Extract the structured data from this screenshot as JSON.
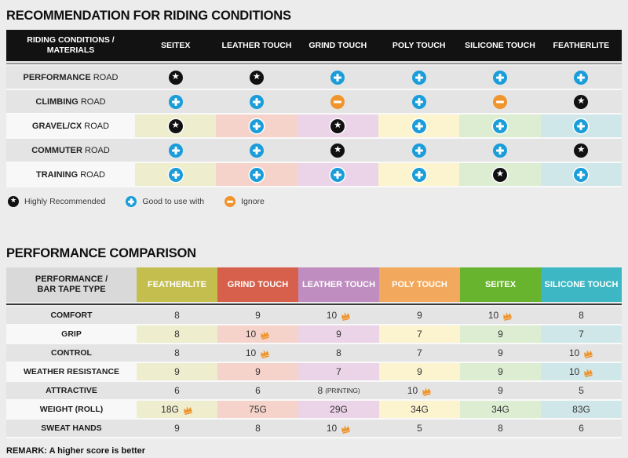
{
  "colors": {
    "page_bg": "#ececec",
    "header_bar": "#121212",
    "row_gray": "#e4e4e4",
    "row_label_light": "#f8f8f8",
    "plus": "#1a9dd9",
    "minus": "#f0952d",
    "star": "#111111",
    "crown": "#f0942c",
    "divider1": "#999999",
    "divider2": "#3a3a3a",
    "label_header_bg": "#d9d9d9"
  },
  "riding_table": {
    "title": "RECOMMENDATION FOR RIDING CONDITIONS",
    "header_lines": [
      "RIDING CONDITIONS /",
      "MATERIALS"
    ],
    "columns": [
      "SEITEX",
      "LEATHER TOUCH",
      "GRIND TOUCH",
      "POLY TOUCH",
      "SILICONE TOUCH",
      "FEATHERLITE"
    ],
    "column_tints": [
      "#eeedcd",
      "#f6d3ca",
      "#ebd3e8",
      "#fcf3cf",
      "#dcedd2",
      "#cfe7e9"
    ],
    "rows": [
      {
        "condition": "PERFORMANCE",
        "suffix": "ROAD",
        "tinted": false,
        "icons": [
          "star",
          "star",
          "plus",
          "plus",
          "plus",
          "plus"
        ]
      },
      {
        "condition": "CLIMBING",
        "suffix": "ROAD",
        "tinted": false,
        "icons": [
          "plus",
          "plus",
          "minus",
          "plus",
          "minus",
          "star"
        ]
      },
      {
        "condition": "GRAVEL/CX",
        "suffix": "ROAD",
        "tinted": true,
        "icons": [
          "star",
          "plus",
          "star",
          "plus",
          "plus",
          "plus"
        ]
      },
      {
        "condition": "COMMUTER",
        "suffix": "ROAD",
        "tinted": false,
        "icons": [
          "plus",
          "plus",
          "star",
          "plus",
          "plus",
          "star"
        ]
      },
      {
        "condition": "TRAINING",
        "suffix": "ROAD",
        "tinted": true,
        "icons": [
          "plus",
          "plus",
          "plus",
          "plus",
          "star",
          "plus"
        ]
      }
    ],
    "legend": [
      {
        "icon": "star",
        "label": "Highly Recommended"
      },
      {
        "icon": "plus",
        "label": "Good to use with"
      },
      {
        "icon": "minus",
        "label": "Ignore"
      }
    ]
  },
  "performance_table": {
    "title": "PERFORMANCE COMPARISON",
    "header_lines": [
      "PERFORMANCE /",
      "BAR TAPE TYPE"
    ],
    "columns": [
      {
        "name": "FEATHERLITE",
        "color": "#c4be4e",
        "tint": "#eeedcd"
      },
      {
        "name": "GRIND TOUCH",
        "color": "#d6604b",
        "tint": "#f6d3ca"
      },
      {
        "name": "LEATHER TOUCH",
        "color": "#bf8dbf",
        "tint": "#ebd3e8"
      },
      {
        "name": "POLY TOUCH",
        "color": "#f3a95d",
        "tint": "#fcf3cf"
      },
      {
        "name": "SEITEX",
        "color": "#69b42f",
        "tint": "#dcedd2"
      },
      {
        "name": "SILICONE TOUCH",
        "color": "#3db7c3",
        "tint": "#cfe7e9"
      }
    ],
    "rows": [
      {
        "metric": "COMFORT",
        "tinted": false,
        "cells": [
          {
            "value": "8"
          },
          {
            "value": "9"
          },
          {
            "value": "10",
            "crown": true
          },
          {
            "value": "9"
          },
          {
            "value": "10",
            "crown": true
          },
          {
            "value": "8"
          }
        ]
      },
      {
        "metric": "GRIP",
        "tinted": true,
        "cells": [
          {
            "value": "8"
          },
          {
            "value": "10",
            "crown": true
          },
          {
            "value": "9"
          },
          {
            "value": "7"
          },
          {
            "value": "9"
          },
          {
            "value": "7"
          }
        ]
      },
      {
        "metric": "CONTROL",
        "tinted": false,
        "cells": [
          {
            "value": "8"
          },
          {
            "value": "10",
            "crown": true
          },
          {
            "value": "8"
          },
          {
            "value": "7"
          },
          {
            "value": "9"
          },
          {
            "value": "10",
            "crown": true
          }
        ]
      },
      {
        "metric": "WEATHER RESISTANCE",
        "tinted": true,
        "cells": [
          {
            "value": "9"
          },
          {
            "value": "9"
          },
          {
            "value": "7"
          },
          {
            "value": "9"
          },
          {
            "value": "9"
          },
          {
            "value": "10",
            "crown": true
          }
        ]
      },
      {
        "metric": "ATTRACTIVE",
        "tinted": false,
        "cells": [
          {
            "value": "6"
          },
          {
            "value": "6"
          },
          {
            "value": "8",
            "note": "(PRINTING)"
          },
          {
            "value": "10",
            "crown": true
          },
          {
            "value": "9"
          },
          {
            "value": "5"
          }
        ]
      },
      {
        "metric": "WEIGHT (ROLL)",
        "tinted": true,
        "cells": [
          {
            "value": "18G",
            "crown": true
          },
          {
            "value": "75G"
          },
          {
            "value": "29G"
          },
          {
            "value": "34G"
          },
          {
            "value": "34G"
          },
          {
            "value": "83G"
          }
        ]
      },
      {
        "metric": "SWEAT HANDS",
        "tinted": false,
        "cells": [
          {
            "value": "9"
          },
          {
            "value": "8"
          },
          {
            "value": "10",
            "crown": true
          },
          {
            "value": "5"
          },
          {
            "value": "8"
          },
          {
            "value": "6"
          }
        ]
      }
    ],
    "remark": "REMARK: A higher score is better"
  },
  "chart_data": [
    {
      "type": "table",
      "title": "RECOMMENDATION FOR RIDING CONDITIONS",
      "columns": [
        "RIDING CONDITIONS / MATERIALS",
        "SEITEX",
        "LEATHER TOUCH",
        "GRIND TOUCH",
        "POLY TOUCH",
        "SILICONE TOUCH",
        "FEATHERLITE"
      ],
      "legend": {
        "star": "Highly Recommended",
        "plus": "Good to use with",
        "minus": "Ignore"
      },
      "rows": [
        {
          "condition": "PERFORMANCE ROAD",
          "ratings": [
            "highly_recommended",
            "highly_recommended",
            "good_to_use_with",
            "good_to_use_with",
            "good_to_use_with",
            "good_to_use_with"
          ]
        },
        {
          "condition": "CLIMBING ROAD",
          "ratings": [
            "good_to_use_with",
            "good_to_use_with",
            "ignore",
            "good_to_use_with",
            "ignore",
            "highly_recommended"
          ]
        },
        {
          "condition": "GRAVEL/CX ROAD",
          "ratings": [
            "highly_recommended",
            "good_to_use_with",
            "highly_recommended",
            "good_to_use_with",
            "good_to_use_with",
            "good_to_use_with"
          ]
        },
        {
          "condition": "COMMUTER ROAD",
          "ratings": [
            "good_to_use_with",
            "good_to_use_with",
            "highly_recommended",
            "good_to_use_with",
            "good_to_use_with",
            "highly_recommended"
          ]
        },
        {
          "condition": "TRAINING ROAD",
          "ratings": [
            "good_to_use_with",
            "good_to_use_with",
            "good_to_use_with",
            "good_to_use_with",
            "highly_recommended",
            "good_to_use_with"
          ]
        }
      ]
    },
    {
      "type": "table",
      "title": "PERFORMANCE COMPARISON",
      "columns": [
        "PERFORMANCE / BAR TAPE TYPE",
        "FEATHERLITE",
        "GRIND TOUCH",
        "LEATHER TOUCH",
        "POLY TOUCH",
        "SEITEX",
        "SILICONE TOUCH"
      ],
      "rows": [
        {
          "metric": "COMFORT",
          "values": [
            "8",
            "9",
            "10",
            "9",
            "10",
            "8"
          ],
          "crown_columns": [
            "LEATHER TOUCH",
            "SEITEX"
          ]
        },
        {
          "metric": "GRIP",
          "values": [
            "8",
            "10",
            "9",
            "7",
            "9",
            "7"
          ],
          "crown_columns": [
            "GRIND TOUCH"
          ]
        },
        {
          "metric": "CONTROL",
          "values": [
            "8",
            "10",
            "8",
            "7",
            "9",
            "10"
          ],
          "crown_columns": [
            "GRIND TOUCH",
            "SILICONE TOUCH"
          ]
        },
        {
          "metric": "WEATHER RESISTANCE",
          "values": [
            "9",
            "9",
            "7",
            "9",
            "9",
            "10"
          ],
          "crown_columns": [
            "SILICONE TOUCH"
          ]
        },
        {
          "metric": "ATTRACTIVE",
          "values": [
            "6",
            "6",
            "8 (PRINTING)",
            "10",
            "9",
            "5"
          ],
          "crown_columns": [
            "POLY TOUCH"
          ]
        },
        {
          "metric": "WEIGHT (ROLL)",
          "values": [
            "18G",
            "75G",
            "29G",
            "34G",
            "34G",
            "83G"
          ],
          "crown_columns": [
            "FEATHERLITE"
          ]
        },
        {
          "metric": "SWEAT HANDS",
          "values": [
            "9",
            "8",
            "10",
            "5",
            "8",
            "6"
          ],
          "crown_columns": [
            "LEATHER TOUCH"
          ]
        }
      ],
      "note": "REMARK: A higher score is better"
    }
  ]
}
